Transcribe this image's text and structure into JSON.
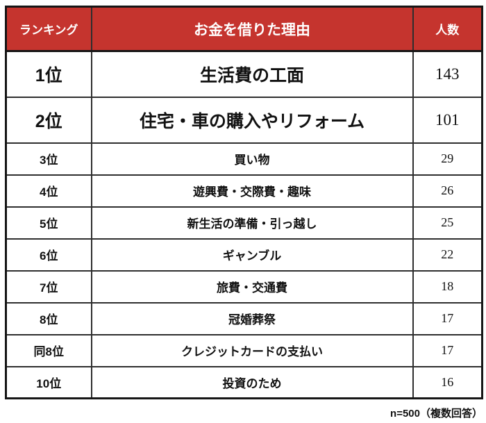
{
  "table": {
    "headers": {
      "rank": "ランキング",
      "reason": "お金を借りた理由",
      "count": "人数"
    },
    "rows": [
      {
        "rank": "1位",
        "reason": "生活費の工面",
        "count": "143",
        "emphasis": true
      },
      {
        "rank": "2位",
        "reason": "住宅・車の購入やリフォーム",
        "count": "101",
        "emphasis": true
      },
      {
        "rank": "3位",
        "reason": "買い物",
        "count": "29",
        "emphasis": false
      },
      {
        "rank": "4位",
        "reason": "遊興費・交際費・趣味",
        "count": "26",
        "emphasis": false
      },
      {
        "rank": "5位",
        "reason": "新生活の準備・引っ越し",
        "count": "25",
        "emphasis": false
      },
      {
        "rank": "6位",
        "reason": "ギャンブル",
        "count": "22",
        "emphasis": false
      },
      {
        "rank": "7位",
        "reason": "旅費・交通費",
        "count": "18",
        "emphasis": false
      },
      {
        "rank": "8位",
        "reason": "冠婚葬祭",
        "count": "17",
        "emphasis": false
      },
      {
        "rank": "同8位",
        "reason": "クレジットカードの支払い",
        "count": "17",
        "emphasis": false
      },
      {
        "rank": "10位",
        "reason": "投資のため",
        "count": "16",
        "emphasis": false
      }
    ],
    "footnote": "n=500（複数回答）"
  },
  "colors": {
    "header_bg": "#c5342e",
    "header_text": "#ffffff",
    "border_outer": "#161616",
    "border_inner": "#2e2e2e",
    "text": "#111111",
    "background": "#ffffff"
  },
  "chart_data": {
    "type": "table",
    "title": "お金を借りた理由",
    "columns": [
      "ランキング",
      "お金を借りた理由",
      "人数"
    ],
    "categories": [
      "1位",
      "2位",
      "3位",
      "4位",
      "5位",
      "6位",
      "7位",
      "8位",
      "同8位",
      "10位"
    ],
    "labels": [
      "生活費の工面",
      "住宅・車の購入やリフォーム",
      "買い物",
      "遊興費・交際費・趣味",
      "新生活の準備・引っ越し",
      "ギャンブル",
      "旅費・交通費",
      "冠婚葬祭",
      "クレジットカードの支払い",
      "投資のため"
    ],
    "values": [
      143,
      101,
      29,
      26,
      25,
      22,
      18,
      17,
      17,
      16
    ],
    "sample_size": 500,
    "footnote": "n=500（複数回答）"
  }
}
